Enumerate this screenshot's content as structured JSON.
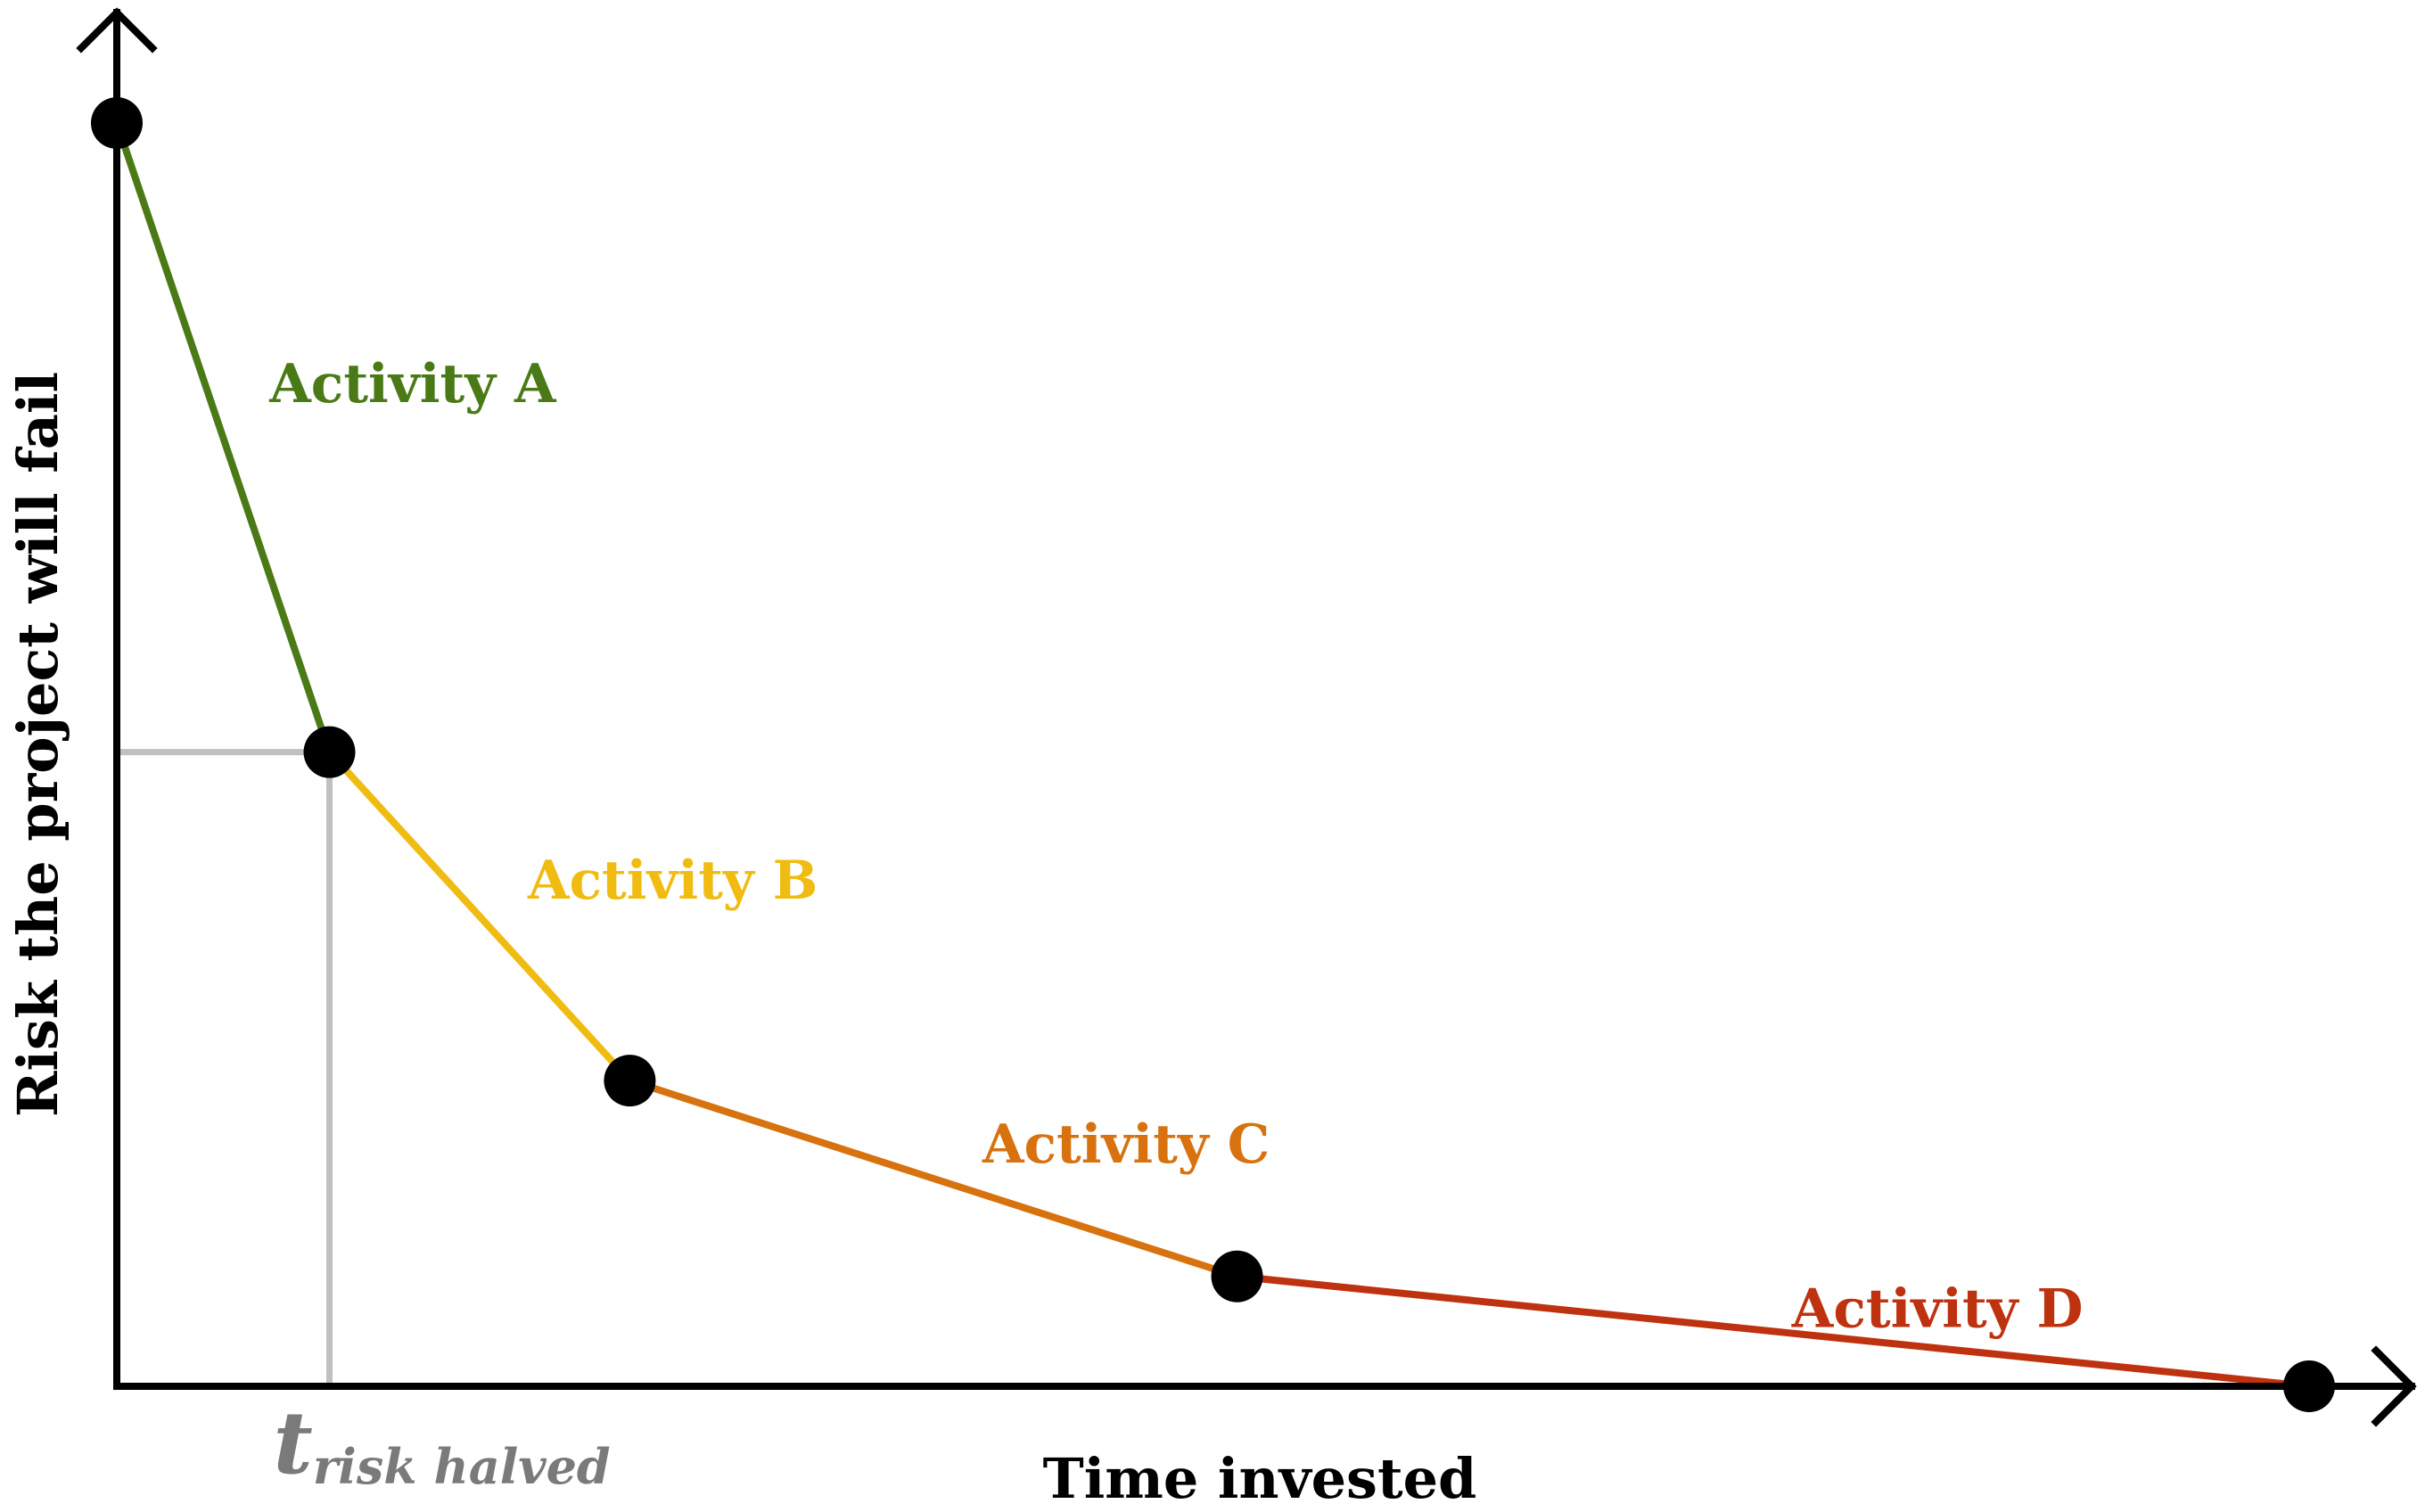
{
  "chart_data": {
    "type": "line",
    "title": "",
    "xlabel": "Time invested",
    "ylabel": "Risk the project will fail",
    "xlim": [
      0,
      100
    ],
    "ylim": [
      0,
      100
    ],
    "grid": false,
    "axis_arrows": true,
    "x_tick": {
      "value": 9.7,
      "main": "t",
      "sub": "risk halved"
    },
    "reference_color": "#c0c0c0",
    "point_color": "#000000",
    "points": [
      {
        "x": 0,
        "y": 100
      },
      {
        "x": 9.7,
        "y": 50.2
      },
      {
        "x": 23.4,
        "y": 24.2
      },
      {
        "x": 51.1,
        "y": 8.7
      },
      {
        "x": 100,
        "y": 0
      }
    ],
    "segments": [
      {
        "label": "Activity A",
        "color": "#4a7a16"
      },
      {
        "label": "Activity B",
        "color": "#f0bc12"
      },
      {
        "label": "Activity C",
        "color": "#d8720f"
      },
      {
        "label": "Activity D",
        "color": "#bf3210"
      }
    ]
  }
}
